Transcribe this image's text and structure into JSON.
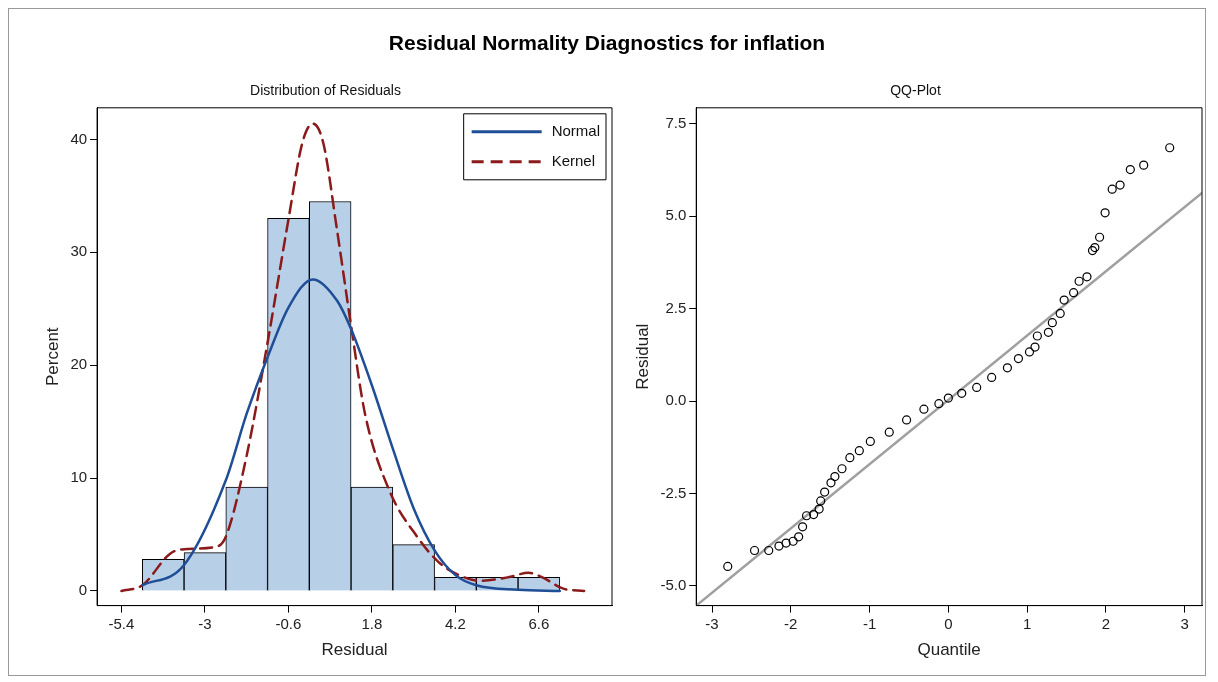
{
  "chart_data": [
    {
      "type": "other",
      "title": "Residual Normality Diagnostics for inflation"
    },
    {
      "type": "histogram",
      "title": "Distribution of Residuals",
      "xlabel": "Residual",
      "ylabel": "Percent",
      "bins": [
        -4.8,
        -3.6,
        -2.4,
        -1.2,
        0,
        1.2,
        2.4,
        3.6,
        4.8,
        6.0,
        7.2
      ],
      "values": [
        2.8,
        3.4,
        9.2,
        33.0,
        34.5,
        9.2,
        4.1,
        1.2,
        1.2,
        1.2
      ],
      "color": "#b8cfe8",
      "xlim": [
        -6.1,
        8.7
      ],
      "xticks": [
        -5.4,
        -3,
        -0.6,
        1.8,
        4.2,
        6.6
      ],
      "ylim": [
        -1.3,
        42.8
      ],
      "yticks": [
        0,
        10,
        20,
        30,
        40
      ],
      "grid": false,
      "legend": "top right",
      "marker": "none",
      "series": [
        {
          "name": "Normal",
          "type": "line",
          "line_style": "solid",
          "color": "#1f4e96",
          "x": [
            -4.8,
            -3.6,
            -2.4,
            -1.8,
            -1.2,
            -0.6,
            0.1,
            0.8,
            1.2,
            1.8,
            2.4,
            3.0,
            3.6,
            4.2,
            4.8,
            6.0,
            7.2
          ],
          "values": [
            0.5,
            2.3,
            9.8,
            15.7,
            20.7,
            25.1,
            27.6,
            25.7,
            23.2,
            18.2,
            12.6,
            7.3,
            3.6,
            1.4,
            0.5,
            0.1,
            0
          ]
        },
        {
          "name": "Kernel",
          "type": "line",
          "line_style": "dashed",
          "color": "#8b1a1a",
          "x": [
            -5.4,
            -4.8,
            -4.0,
            -3.6,
            -2.7,
            -2.4,
            -1.8,
            -1.2,
            -0.6,
            -0.2,
            0.1,
            0.4,
            0.8,
            1.2,
            1.6,
            2.3,
            3.1,
            3.7,
            4.3,
            4.9,
            5.7,
            6.3,
            6.7,
            7.3,
            7.9
          ],
          "values": [
            0,
            0.5,
            3.3,
            3.7,
            3.9,
            4.8,
            12.0,
            22.0,
            32.9,
            39.7,
            41.4,
            39.7,
            31.9,
            23.5,
            15.7,
            8.9,
            4.8,
            2.6,
            1.4,
            0.9,
            1.2,
            1.6,
            1.2,
            0.2,
            0
          ]
        }
      ]
    },
    {
      "type": "scatter",
      "title": "QQ-Plot",
      "xlabel": "Quantile",
      "ylabel": "Residual",
      "xlim": [
        -3.2,
        3.22
      ],
      "xticks": [
        -3,
        -2,
        -1,
        0,
        1,
        2,
        3
      ],
      "ylim": [
        -5.53,
        7.93
      ],
      "yticks": [
        {
          "value": -5,
          "label": "-5.0"
        },
        {
          "value": -2.5,
          "label": "-2.5"
        },
        {
          "value": 0,
          "label": "0.0"
        },
        {
          "value": 2.5,
          "label": "2.5"
        },
        {
          "value": 5,
          "label": "5.0"
        },
        {
          "value": 7.5,
          "label": "7.5"
        }
      ],
      "grid": false,
      "series": [
        {
          "type": "line",
          "line_style": "solid",
          "marker": "none",
          "color": "#a0a0a0",
          "x": [
            -3.2,
            3.22
          ],
          "values": [
            -5.53,
            5.63
          ]
        },
        {
          "type": "scatter",
          "marker": "circle",
          "color": "#000000",
          "x": [
            -2.8,
            -2.46,
            -2.28,
            -2.15,
            -2.06,
            -1.97,
            -1.9,
            -1.85,
            -1.8,
            -1.71,
            -1.64,
            -1.62,
            -1.57,
            -1.49,
            -1.44,
            -1.35,
            -1.25,
            -1.13,
            -0.99,
            -0.75,
            -0.53,
            -0.31,
            -0.12,
            0,
            0.17,
            0.36,
            0.55,
            0.75,
            0.89,
            1.03,
            1.1,
            1.13,
            1.27,
            1.32,
            1.42,
            1.47,
            1.59,
            1.66,
            1.76,
            1.83,
            1.86,
            1.92,
            1.99,
            2.08,
            2.18,
            2.31,
            2.48,
            2.81
          ],
          "values": [
            -4.47,
            -4.04,
            -4.04,
            -3.92,
            -3.84,
            -3.79,
            -3.67,
            -3.4,
            -3.1,
            -3.07,
            -2.92,
            -2.7,
            -2.46,
            -2.21,
            -2.04,
            -1.83,
            -1.53,
            -1.34,
            -1.09,
            -0.84,
            -0.51,
            -0.22,
            -0.07,
            0.08,
            0.21,
            0.37,
            0.64,
            0.9,
            1.15,
            1.33,
            1.46,
            1.76,
            1.86,
            2.12,
            2.37,
            2.73,
            2.93,
            3.24,
            3.36,
            4.07,
            4.15,
            4.43,
            5.09,
            5.73,
            5.84,
            6.26,
            6.38,
            6.85
          ]
        }
      ]
    }
  ]
}
